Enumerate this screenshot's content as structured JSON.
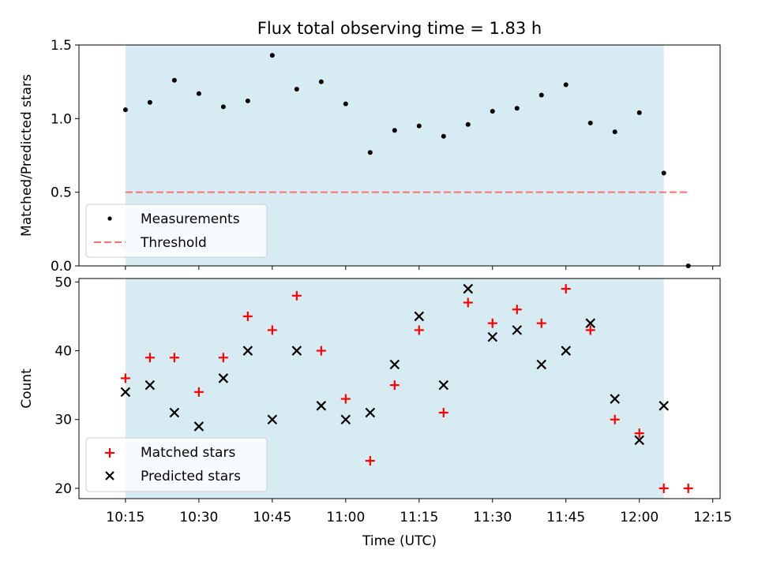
{
  "chart_data": {
    "title": "Flux total observing time = 1.83 h",
    "xlabel": "Time (UTC)",
    "x_tick_labels": [
      "10:15",
      "10:30",
      "10:45",
      "11:00",
      "11:15",
      "11:30",
      "11:45",
      "12:00",
      "12:15"
    ],
    "x_tick_minutes": [
      615,
      630,
      645,
      660,
      675,
      690,
      705,
      720,
      735
    ],
    "xlim_minutes": [
      605.5,
      736.5
    ],
    "shaded_span_minutes": [
      615,
      725
    ],
    "shaded_color": "#add8e6",
    "panels": [
      {
        "type": "scatter",
        "ylabel": "Matched/Predicted stars",
        "ylim": [
          0,
          1.5
        ],
        "y_ticks": [
          0.0,
          0.5,
          1.0,
          1.5
        ],
        "y_tick_labels": [
          "0.0",
          "0.5",
          "1.0",
          "1.5"
        ],
        "legend_placement": "lower-left",
        "series": [
          {
            "name": "Measurements",
            "marker": "dot",
            "color": "#000000",
            "x_minutes": [
              615,
              620,
              625,
              630,
              635,
              640,
              645,
              650,
              655,
              660,
              665,
              670,
              675,
              680,
              685,
              690,
              695,
              700,
              705,
              710,
              715,
              720,
              725,
              730
            ],
            "y": [
              1.06,
              1.11,
              1.26,
              1.17,
              1.08,
              1.12,
              1.43,
              1.2,
              1.25,
              1.1,
              0.77,
              0.92,
              0.95,
              0.88,
              0.96,
              1.05,
              1.07,
              1.16,
              1.23,
              0.97,
              0.91,
              1.04,
              0.63,
              0.0
            ]
          },
          {
            "name": "Threshold",
            "marker": "dashed-line",
            "color": "#ff7070",
            "x_minutes": [
              615,
              730
            ],
            "y": [
              0.5,
              0.5
            ]
          }
        ]
      },
      {
        "type": "scatter",
        "ylabel": "Count",
        "ylim": [
          18.5,
          50.5
        ],
        "y_ticks": [
          20,
          30,
          40,
          50
        ],
        "y_tick_labels": [
          "20",
          "30",
          "40",
          "50"
        ],
        "legend_placement": "lower-left",
        "series": [
          {
            "name": "Matched stars",
            "marker": "plus",
            "color": "#ff0000",
            "x_minutes": [
              615,
              620,
              625,
              630,
              635,
              640,
              645,
              650,
              655,
              660,
              665,
              670,
              675,
              680,
              685,
              690,
              695,
              700,
              705,
              710,
              715,
              720,
              725,
              730
            ],
            "y": [
              36,
              39,
              39,
              34,
              39,
              45,
              43,
              48,
              40,
              33,
              24,
              35,
              43,
              31,
              47,
              44,
              46,
              44,
              49,
              43,
              30,
              28,
              20,
              20
            ]
          },
          {
            "name": "Predicted stars",
            "marker": "x",
            "color": "#000000",
            "x_minutes": [
              615,
              620,
              625,
              630,
              635,
              640,
              645,
              650,
              655,
              660,
              665,
              670,
              675,
              680,
              685,
              690,
              695,
              700,
              705,
              710,
              715,
              720,
              725
            ],
            "y": [
              34,
              35,
              31,
              29,
              36,
              40,
              30,
              40,
              32,
              30,
              31,
              38,
              45,
              35,
              49,
              42,
              43,
              38,
              40,
              44,
              33,
              27,
              32
            ]
          }
        ]
      }
    ]
  }
}
